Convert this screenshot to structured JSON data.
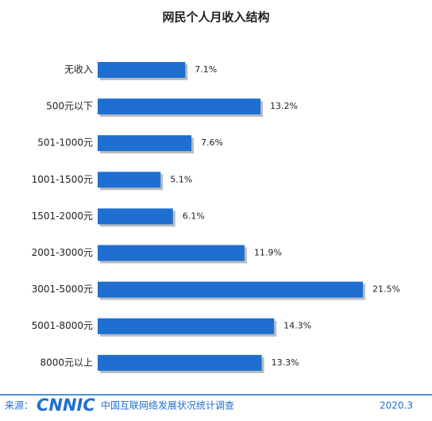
{
  "chart_data": {
    "type": "bar",
    "orientation": "horizontal",
    "title": "网民个人月收入结构",
    "categories": [
      "无收入",
      "500元以下",
      "501-1000元",
      "1001-1500元",
      "1501-2000元",
      "2001-3000元",
      "3001-5000元",
      "5001-8000元",
      "8000元以上"
    ],
    "values": [
      7.1,
      13.2,
      7.6,
      5.1,
      6.1,
      11.9,
      21.5,
      14.3,
      13.3
    ],
    "value_labels": [
      "7.1%",
      "13.2%",
      "7.6%",
      "5.1%",
      "6.1%",
      "11.9%",
      "21.5%",
      "14.3%",
      "13.3%"
    ],
    "color": "#1f6fd1"
  },
  "footer": {
    "source_label": "来源：",
    "logo": "CNNIC",
    "survey": "中国互联网络发展状况统计调查",
    "date": "2020.3"
  }
}
